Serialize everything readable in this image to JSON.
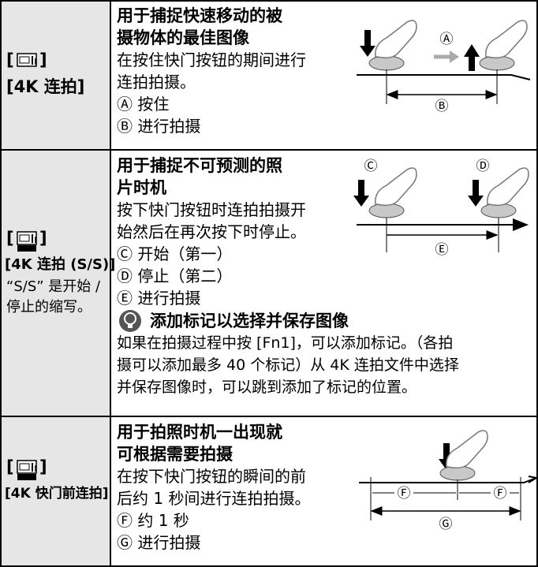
{
  "rows": [
    {
      "mode": {
        "bracket_open": "[",
        "bracket_close": "]",
        "name": "[4K 连拍]"
      },
      "title": [
        "用于捕捉快速移动的被",
        "摄物体的最佳图像"
      ],
      "description": [
        "在按住快门按钮的期间进行",
        "连拍拍摄。"
      ],
      "items": [
        "Ⓐ 按住",
        "Ⓑ 进行拍摄"
      ],
      "diagram_labels": [
        "Ⓐ",
        "Ⓑ"
      ]
    },
    {
      "mode": {
        "bracket_open": "[",
        "bracket_close": "]",
        "name": "[4K 连拍 (S/S)]",
        "notes": [
          "“S/S” 是开始 /",
          "停止的缩写。"
        ]
      },
      "title": [
        "用于捕捉不可预测的照",
        "片时机"
      ],
      "description": [
        "按下快门按钮时连拍拍摄开",
        "始然后在再次按下时停止。"
      ],
      "items": [
        "Ⓒ 开始（第一）",
        "Ⓓ 停止（第二）",
        "Ⓔ 进行拍摄"
      ],
      "diagram_labels": [
        "Ⓒ",
        "Ⓓ",
        "Ⓔ"
      ],
      "tip": {
        "heading": "添加标记以选择并保存图像",
        "text": [
          "如果在拍摄过程中按 [Fn1]，可以添加标记。（各拍",
          "摄可以添加最多 40 个标记）从 4K 连拍文件中选择",
          "并保存图像时，可以跳到添加了标记的位置。"
        ]
      }
    },
    {
      "mode": {
        "bracket_open": "[",
        "bracket_close": "]",
        "name": "[4K 快门前连拍]"
      },
      "title": [
        "用于拍照时机一出现就",
        "可根据需要拍摄"
      ],
      "description": [
        "在按下快门按钮的瞬间的前",
        "后约 1 秒间进行连拍拍摄。"
      ],
      "items": [
        "Ⓕ 约 1 秒",
        "Ⓖ 进行拍摄"
      ],
      "diagram_labels": [
        "Ⓕ",
        "Ⓕ",
        "Ⓖ"
      ]
    }
  ]
}
